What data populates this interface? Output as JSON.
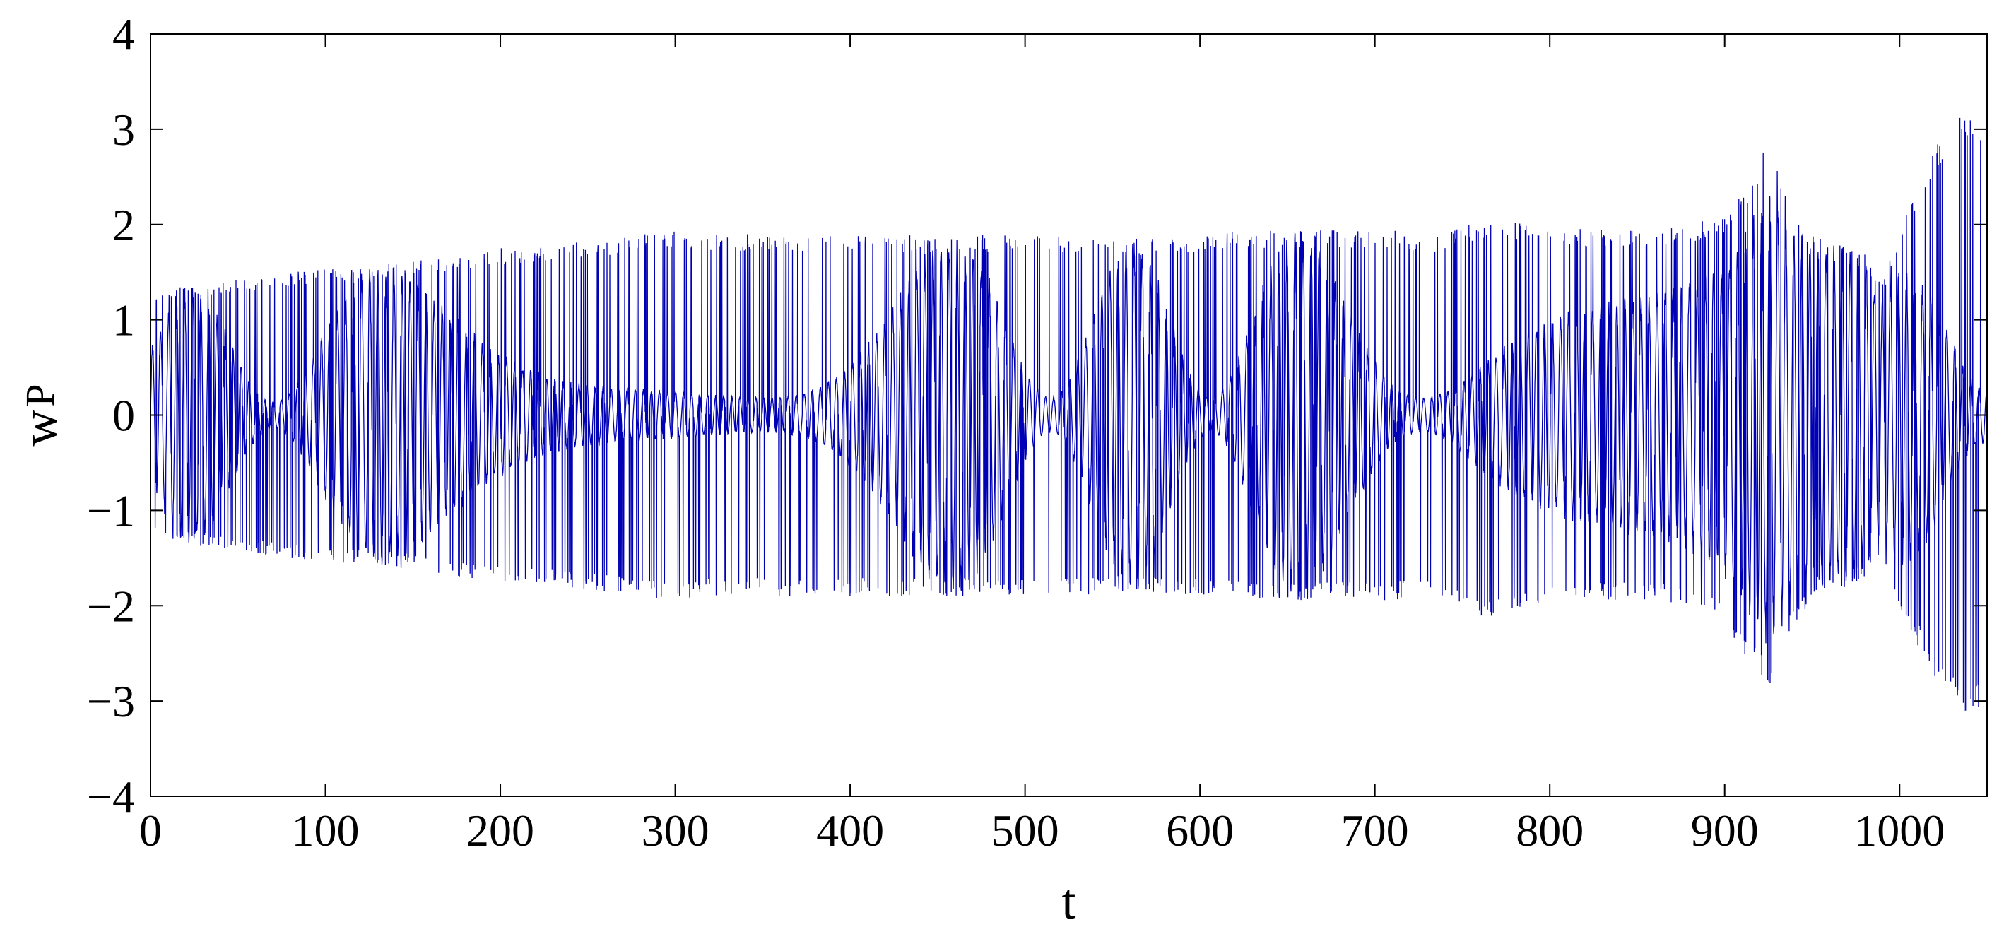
{
  "chart_data": {
    "type": "line",
    "xlabel": "t",
    "ylabel": "w",
    "ylabel_subscript": "P",
    "xlim": [
      0,
      1050
    ],
    "ylim": [
      -4,
      4
    ],
    "x_ticks": [
      0,
      100,
      200,
      300,
      400,
      500,
      600,
      700,
      800,
      900,
      1000
    ],
    "x_tick_labels": [
      "0",
      "100",
      "200",
      "300",
      "400",
      "500",
      "600",
      "700",
      "800",
      "900",
      "1000"
    ],
    "y_ticks": [
      -4,
      -3,
      -2,
      -1,
      0,
      1,
      2,
      3,
      4
    ],
    "y_tick_labels": [
      "−4",
      "−3",
      "−2",
      "−1",
      "0",
      "1",
      "2",
      "3",
      "4"
    ],
    "grid": false,
    "legend": "none",
    "series": [
      {
        "color": "#0000b4",
        "envelope": {
          "t": [
            0,
            20,
            40,
            60,
            80,
            100,
            120,
            140,
            160,
            180,
            200,
            230,
            260,
            280,
            300,
            320,
            350,
            400,
            450,
            500,
            540,
            560,
            600,
            650,
            700,
            740,
            760,
            790,
            820,
            860,
            880,
            900,
            915,
            925,
            935,
            950,
            960,
            970,
            980,
            990,
            1000,
            1010,
            1020,
            1030,
            1040,
            1050
          ],
          "upper": [
            1.3,
            1.35,
            1.4,
            1.45,
            1.5,
            1.55,
            1.55,
            1.6,
            1.65,
            1.7,
            1.75,
            1.8,
            1.85,
            1.9,
            1.95,
            1.9,
            1.9,
            1.9,
            1.9,
            1.9,
            1.9,
            1.85,
            1.9,
            1.95,
            1.95,
            1.9,
            2.05,
            2.0,
            1.95,
            1.95,
            2.0,
            2.1,
            2.5,
            2.95,
            2.3,
            1.9,
            1.85,
            1.8,
            1.7,
            1.4,
            2.0,
            2.4,
            2.8,
            3.1,
            3.2,
            3.0
          ],
          "lower": [
            -1.3,
            -1.35,
            -1.4,
            -1.45,
            -1.5,
            -1.55,
            -1.55,
            -1.6,
            -1.65,
            -1.7,
            -1.75,
            -1.8,
            -1.85,
            -1.9,
            -1.95,
            -1.9,
            -1.9,
            -1.9,
            -1.9,
            -1.9,
            -1.9,
            -1.85,
            -1.9,
            -1.95,
            -1.95,
            -1.9,
            -2.15,
            -2.0,
            -1.95,
            -1.95,
            -2.0,
            -2.2,
            -2.6,
            -2.9,
            -2.4,
            -1.9,
            -1.85,
            -1.8,
            -1.7,
            -1.5,
            -2.0,
            -2.4,
            -2.8,
            -3.0,
            -3.2,
            -3.0
          ]
        }
      }
    ]
  }
}
